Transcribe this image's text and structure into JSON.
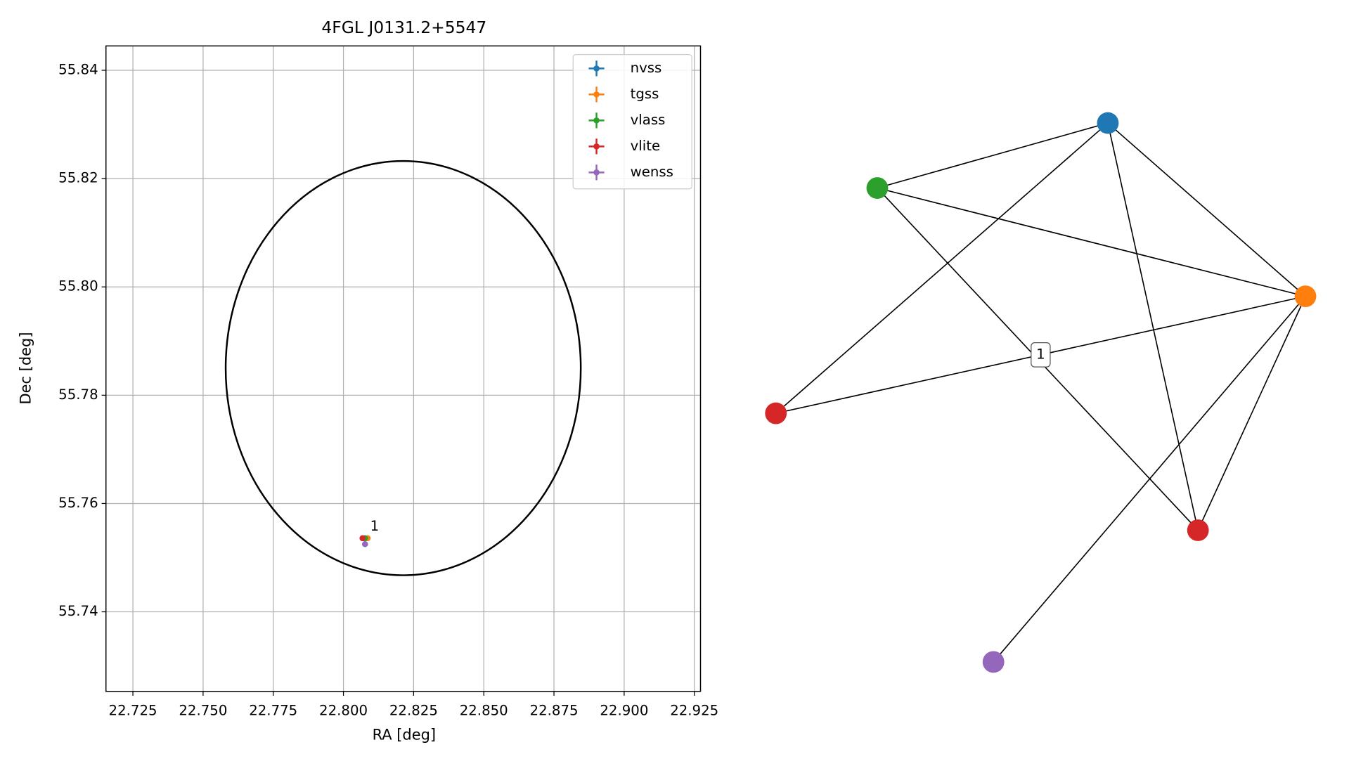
{
  "chart_data": [
    {
      "type": "scatter",
      "title": "4FGL J0131.2+5547",
      "xlabel": "RA [deg]",
      "ylabel": "Dec [deg]",
      "xlim": [
        22.7154,
        22.9272
      ],
      "ylim": [
        55.7253,
        55.8445
      ],
      "xticks": [
        22.725,
        {
          "value": 22.75,
          "label": "22.750"
        },
        22.775,
        {
          "value": 22.8,
          "label": "22.800"
        },
        22.825,
        {
          "value": 22.85,
          "label": "22.850"
        },
        22.875,
        {
          "value": 22.9,
          "label": "22.900"
        },
        22.925
      ],
      "yticks": [
        55.74,
        55.76,
        55.78,
        {
          "value": 55.8,
          "label": "55.80"
        },
        55.82,
        55.84
      ],
      "grid": true,
      "legend": "upper right",
      "ellipse": {
        "center": [
          22.8213,
          55.785
        ],
        "width": 0.1265,
        "height": 0.0765,
        "color": "#000000"
      },
      "series": [
        {
          "name": "nvss",
          "color": "#1f77b4",
          "x": [
            22.8075
          ],
          "values": [
            55.7536
          ]
        },
        {
          "name": "tgss",
          "color": "#ff7f0e",
          "x": [
            22.8086
          ],
          "values": [
            55.7536
          ]
        },
        {
          "name": "vlass",
          "color": "#2ca02c",
          "x": [
            22.8077
          ],
          "values": [
            55.7536
          ]
        },
        {
          "name": "vlite",
          "color": "#d62728",
          "x": [
            22.8068
          ],
          "values": [
            55.7536
          ]
        },
        {
          "name": "wenss",
          "color": "#9467bd",
          "x": [
            22.8077
          ],
          "values": [
            55.7525
          ]
        }
      ],
      "annotations": [
        {
          "text": "1",
          "x": 22.8111,
          "y": 55.7557
        }
      ]
    },
    {
      "type": "network",
      "nodes": [
        {
          "color": "#1f77b4"
        },
        {
          "color": "#2ca02c"
        },
        {
          "color": "#ff7f0e"
        },
        {
          "color": "#d62728"
        },
        {
          "color": "#d62728"
        },
        {
          "color": "#9467bd"
        }
      ],
      "edges": [
        [
          0,
          1
        ],
        [
          0,
          3
        ],
        [
          0,
          2
        ],
        [
          0,
          4
        ],
        [
          1,
          2
        ],
        [
          1,
          4
        ],
        [
          2,
          3
        ],
        [
          2,
          4
        ],
        [
          2,
          5
        ]
      ],
      "edge_labels": [
        {
          "edge": 6,
          "text": "1"
        }
      ]
    }
  ]
}
